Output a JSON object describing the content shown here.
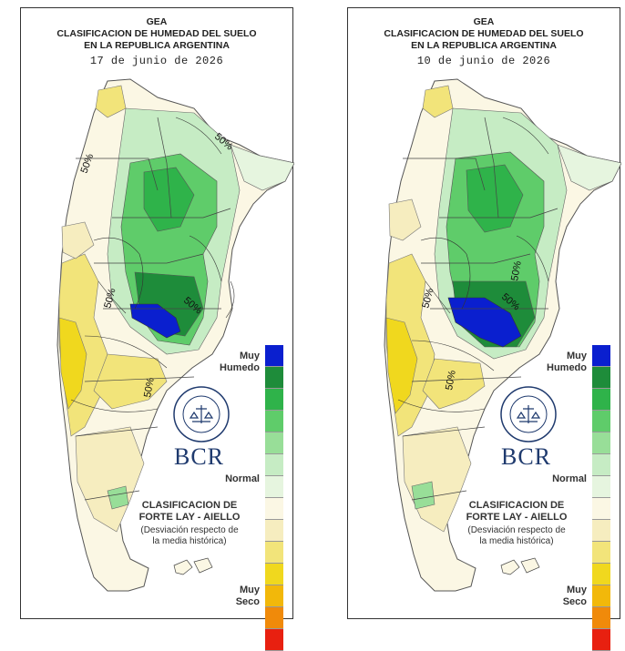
{
  "panels": [
    {
      "title_1": "GEA",
      "title_2": "CLASIFICACION DE HUMEDAD DEL SUELO",
      "title_3": "EN LA REPUBLICA ARGENTINA",
      "date": "17 de junio de 2026",
      "contour_labels": [
        "50%",
        "50%",
        "50%",
        "50%",
        "50%"
      ]
    },
    {
      "title_1": "GEA",
      "title_2": "CLASIFICACION DE HUMEDAD DEL SUELO",
      "title_3": "EN LA REPUBLICA ARGENTINA",
      "date": "10 de junio de 2026",
      "contour_labels": [
        "50%",
        "50%",
        "50%",
        "50%"
      ]
    }
  ],
  "legend": {
    "top_label_1": "Muy",
    "top_label_2": "Humedo",
    "mid_label": "Normal",
    "bottom_label_1": "Muy",
    "bottom_label_2": "Seco",
    "colors": [
      "#0a1fcf",
      "#1e8c3a",
      "#2fb34a",
      "#5fcc6a",
      "#98de98",
      "#c6ecc4",
      "#e6f5df",
      "#fbf7e4",
      "#f6edbf",
      "#f2e47a",
      "#f0d81e",
      "#f2b80a",
      "#f08a0a",
      "#e82010"
    ]
  },
  "classification": {
    "title_1": "CLASIFICACION DE",
    "title_2": "FORTE LAY - AIELLO",
    "desc_1": "(Desviación respecto de",
    "desc_2": "la media histórica)"
  },
  "logo": {
    "text": "BCR",
    "seal_text": "BOLSA DE COMERCIO DE ROSARIO"
  },
  "map_colors": {
    "very_wet": "#0a1fcf",
    "wet_dark": "#1e8c3a",
    "wet": "#2fb34a",
    "wet_light": "#98de98",
    "normal_wet": "#e6f5df",
    "normal": "#fbf7e4",
    "dry_light": "#f6edbf",
    "dry": "#f2e47a",
    "dry_strong": "#f0d81e"
  }
}
